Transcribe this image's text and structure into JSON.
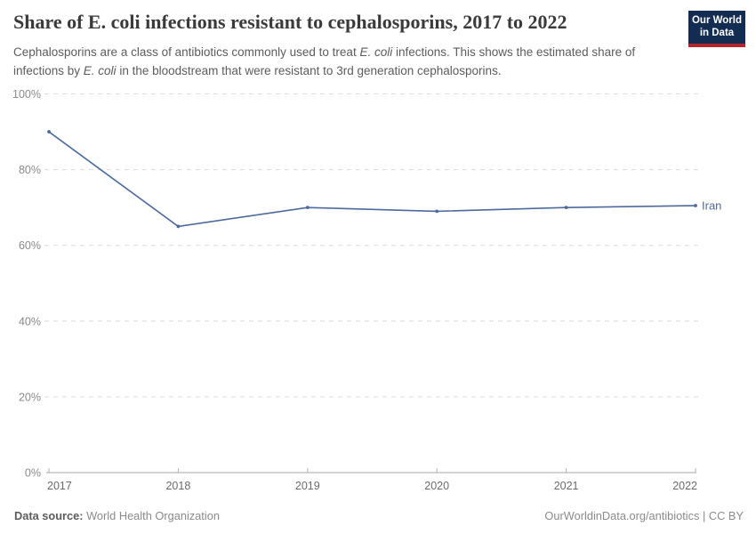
{
  "header": {
    "title": "Share of E. coli infections resistant to cephalosporins, 2017 to 2022",
    "subtitle_segments": [
      {
        "text": "Cephalosporins are a class of antibiotics commonly used to treat ",
        "italic": false
      },
      {
        "text": "E. coli",
        "italic": true
      },
      {
        "text": " infections. This shows the estimated share of infections by ",
        "italic": false
      },
      {
        "text": "E. coli",
        "italic": true
      },
      {
        "text": " in the bloodstream that were resistant to 3rd generation cephalosporins.",
        "italic": false
      }
    ]
  },
  "logo": {
    "line1": "Our World",
    "line2": "in Data",
    "bg_color": "#132c52",
    "stripe_color": "#b5232d"
  },
  "chart_data": {
    "type": "line",
    "title": "Share of E. coli infections resistant to cephalosporins, 2017 to 2022",
    "x": [
      2017,
      2018,
      2019,
      2020,
      2021,
      2022
    ],
    "series": [
      {
        "name": "Iran",
        "values": [
          90,
          65,
          70,
          69,
          70,
          70.5
        ],
        "color": "#4c6a9d"
      }
    ],
    "ylim": [
      0,
      100
    ],
    "yticks": [
      0,
      20,
      40,
      60,
      80,
      100
    ],
    "ytick_suffix": "%",
    "grid": "horizontal-dashed",
    "legend": "end-of-line-label"
  },
  "footer": {
    "datasource_label": "Data source:",
    "datasource_value": " World Health Organization",
    "credit": "OurWorldinData.org/antibiotics | CC BY"
  }
}
